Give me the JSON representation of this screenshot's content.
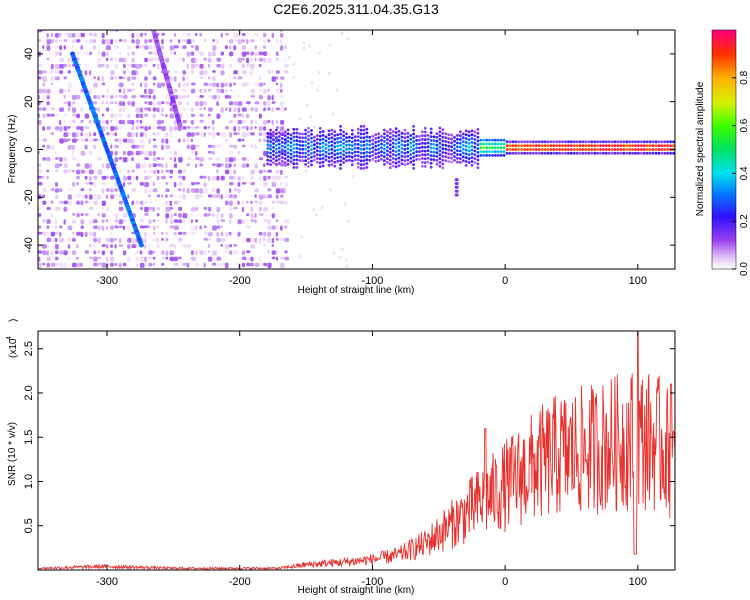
{
  "title": "C2E6.2025.311.04.35.G13",
  "chart_data": [
    {
      "type": "heatmap",
      "name": "spectrogram",
      "xlabel": "Height of straight line (km)",
      "ylabel": "Frequency (Hz)",
      "xlim": [
        -352,
        128
      ],
      "ylim": [
        -50,
        50
      ],
      "xticks": [
        -300,
        -200,
        -100,
        0,
        100
      ],
      "yticks": [
        -40,
        -20,
        0,
        20,
        40
      ],
      "colorbar": {
        "label": "Normalized spectral amplitude",
        "range": [
          0,
          1
        ],
        "ticks": [
          "0.0",
          "0.2",
          "0.4",
          "0.6",
          "0.8"
        ],
        "tick_values": [
          0,
          0.2,
          0.4,
          0.6,
          0.8
        ]
      },
      "features": [
        {
          "name": "main-descending-track",
          "x_start": -326,
          "y_start": 40,
          "x_end": -274,
          "y_end": -40,
          "amplitude": 0.3
        },
        {
          "name": "upper-descending-track",
          "x_start": -265,
          "y_start": 50,
          "x_end": -245,
          "y_end": 10,
          "amplitude": 0.12
        },
        {
          "name": "signal-band",
          "x_start": -180,
          "x_end": 128,
          "center_hz": 0,
          "note": "amplitude rises from ~0.3 to ~0.95 near 0 Hz for heights above -20 km"
        }
      ]
    },
    {
      "type": "line",
      "name": "snr",
      "xlabel": "Height of straight line (km)",
      "ylabel": "SNR (10 * v/v)",
      "y_scale_label": "(x10",
      "y_scale_exponent": "4",
      "xlim": [
        -352,
        128
      ],
      "ylim": [
        0,
        2.7
      ],
      "xticks": [
        -300,
        -200,
        -100,
        0,
        100
      ],
      "yticks": [
        0.5,
        1.0,
        1.5,
        2.0,
        2.5
      ],
      "ytick_labels": [
        "0.5",
        "1.0",
        "1.5",
        "2.0",
        "2.5"
      ],
      "color": "#e8302c",
      "x": [
        -350,
        -300,
        -250,
        -200,
        -170,
        -150,
        -120,
        -100,
        -80,
        -60,
        -40,
        -20,
        0,
        20,
        40,
        60,
        80,
        100,
        120,
        128
      ],
      "y": [
        0.02,
        0.04,
        0.02,
        0.02,
        0.02,
        0.06,
        0.09,
        0.12,
        0.17,
        0.3,
        0.52,
        0.75,
        0.95,
        1.15,
        1.3,
        1.35,
        1.42,
        1.5,
        1.4,
        1.2
      ],
      "peaks": [
        {
          "x": -15,
          "y": 1.6
        },
        {
          "x": 100,
          "y": 2.68
        },
        {
          "x": 125,
          "y": 2.1
        }
      ]
    }
  ]
}
